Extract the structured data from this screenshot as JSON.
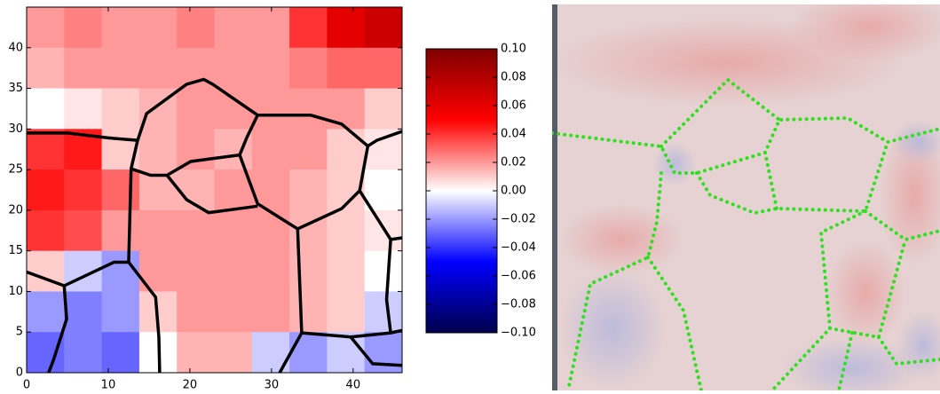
{
  "chart_data": {
    "type": "heatmap",
    "xlim": [
      0,
      46
    ],
    "ylim": [
      0,
      45
    ],
    "xticks": [
      0,
      10,
      20,
      30,
      40
    ],
    "yticks": [
      0,
      5,
      10,
      15,
      20,
      25,
      30,
      35,
      40
    ],
    "z": [
      [
        0.02,
        0.025,
        0.02,
        0.02,
        0.025,
        0.02,
        0.02,
        0.04,
        0.06,
        0.07
      ],
      [
        0.015,
        0.02,
        0.02,
        0.02,
        0.02,
        0.02,
        0.02,
        0.025,
        0.03,
        0.03
      ],
      [
        0.0,
        0.005,
        0.01,
        0.015,
        0.02,
        0.02,
        0.02,
        0.02,
        0.02,
        0.01
      ],
      [
        0.04,
        0.045,
        0.01,
        0.015,
        0.02,
        0.015,
        0.02,
        0.02,
        0.01,
        0.005
      ],
      [
        0.045,
        0.04,
        0.03,
        0.015,
        0.015,
        0.02,
        0.02,
        0.015,
        0.01,
        0.0
      ],
      [
        0.04,
        0.035,
        0.02,
        0.02,
        0.02,
        0.02,
        0.02,
        0.015,
        0.01,
        0.005
      ],
      [
        0.01,
        -0.01,
        -0.02,
        0.02,
        0.02,
        0.02,
        0.02,
        0.015,
        0.01,
        0.0
      ],
      [
        -0.02,
        -0.025,
        -0.02,
        0.01,
        0.02,
        0.02,
        0.02,
        0.015,
        0.01,
        -0.01
      ],
      [
        -0.03,
        -0.025,
        -0.03,
        0.0,
        0.015,
        0.015,
        -0.01,
        -0.02,
        -0.01,
        -0.02
      ]
    ],
    "boundaries": [
      {
        "x": [
          0,
          5,
          10,
          13.6
        ],
        "y": [
          29.5,
          29.5,
          28.9,
          28.6
        ]
      },
      {
        "x": [
          13.6,
          12.8,
          12.5,
          15.8,
          16.2,
          16.3
        ],
        "y": [
          28.6,
          25.1,
          13.6,
          9.3,
          4.4,
          0
        ]
      },
      {
        "x": [
          12.5,
          10.7,
          4.6,
          0
        ],
        "y": [
          13.6,
          13.6,
          10.7,
          12.4
        ]
      },
      {
        "x": [
          4.6,
          4.9,
          3.3,
          2.7
        ],
        "y": [
          10.7,
          6.6,
          1.6,
          0
        ]
      },
      {
        "x": [
          13.6,
          14.7,
          19.6,
          21.7,
          22.8,
          28.3,
          34.8,
          38.6,
          41.8,
          42.9,
          46
        ],
        "y": [
          28.6,
          31.9,
          35.5,
          36.1,
          35.5,
          31.7,
          31.7,
          30.6,
          27.9,
          28.6,
          29.7
        ]
      },
      {
        "x": [
          12.8,
          15.2,
          17.2,
          20.1,
          26.1
        ],
        "y": [
          25.1,
          24.3,
          24.3,
          26.0,
          26.8
        ]
      },
      {
        "x": [
          28.3,
          27,
          26.1,
          28.3,
          33.2,
          38.6,
          40.8
        ],
        "y": [
          31.7,
          29,
          26.8,
          20.8,
          17.7,
          20.2,
          22.4
        ]
      },
      {
        "x": [
          41.8,
          40.8,
          44.6,
          46
        ],
        "y": [
          27.9,
          22.4,
          16.4,
          16.6
        ]
      },
      {
        "x": [
          17.2,
          19.6,
          22.3,
          28.3
        ],
        "y": [
          24.3,
          21.3,
          19.7,
          20.5
        ]
      },
      {
        "x": [
          33.2,
          33.7,
          39.7,
          44.6,
          46
        ],
        "y": [
          17.7,
          4.9,
          4.4,
          4.9,
          5.2
        ]
      },
      {
        "x": [
          33.7,
          31
        ],
        "y": [
          4.9,
          0
        ]
      },
      {
        "x": [
          44.6,
          44.1,
          44.6
        ],
        "y": [
          16.4,
          9,
          4.9
        ]
      },
      {
        "x": [
          39.7,
          42.4,
          46
        ],
        "y": [
          4.4,
          1.1,
          0.9
        ]
      }
    ],
    "zlim": [
      -0.1,
      0.1
    ],
    "colormap": [
      "#00004c",
      "#0000ff",
      "#ffffff",
      "#ff0000",
      "#7f0000"
    ],
    "colorbar_ticks": [
      {
        "value": 0.1,
        "label": "0.10"
      },
      {
        "value": 0.08,
        "label": "0.08"
      },
      {
        "value": 0.06,
        "label": "0.06"
      },
      {
        "value": 0.04,
        "label": "0.04"
      },
      {
        "value": 0.02,
        "label": "0.02"
      },
      {
        "value": 0.0,
        "label": "0.00"
      },
      {
        "value": -0.02,
        "label": "−0.02"
      },
      {
        "value": -0.04,
        "label": "−0.04"
      },
      {
        "value": -0.06,
        "label": "−0.06"
      },
      {
        "value": -0.08,
        "label": "−0.08"
      },
      {
        "value": -0.1,
        "label": "−0.10"
      }
    ]
  }
}
